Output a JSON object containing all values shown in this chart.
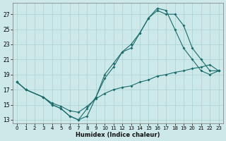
{
  "xlabel": "Humidex (Indice chaleur)",
  "xlim": [
    -0.5,
    23.5
  ],
  "ylim": [
    12.5,
    28.5
  ],
  "yticks": [
    13,
    15,
    17,
    19,
    21,
    23,
    25,
    27
  ],
  "xticks": [
    0,
    1,
    2,
    3,
    4,
    5,
    6,
    7,
    8,
    9,
    10,
    11,
    12,
    13,
    14,
    15,
    16,
    17,
    18,
    19,
    20,
    21,
    22,
    23
  ],
  "bg_color": "#cce8e8",
  "grid_color": "#aad0d0",
  "line_color": "#1a6b6b",
  "line1_x": [
    0,
    1,
    3,
    4,
    5,
    6,
    7,
    8,
    9,
    10,
    11,
    12,
    13,
    14,
    15,
    16,
    17,
    18,
    19,
    20,
    21,
    22,
    23
  ],
  "line1_y": [
    18.0,
    17.0,
    16.0,
    15.0,
    14.5,
    13.5,
    13.0,
    13.5,
    16.0,
    18.5,
    20.0,
    22.0,
    22.5,
    24.5,
    26.5,
    27.8,
    27.5,
    25.0,
    22.5,
    21.0,
    19.5,
    19.0,
    19.5
  ],
  "line2_x": [
    0,
    1,
    3,
    4,
    5,
    6,
    7,
    8,
    9,
    10,
    11,
    12,
    13,
    14,
    15,
    16,
    17,
    18,
    19,
    20,
    21,
    22,
    23
  ],
  "line2_y": [
    18.0,
    17.0,
    16.0,
    15.0,
    14.5,
    13.5,
    13.0,
    14.5,
    16.0,
    19.0,
    20.5,
    22.0,
    23.0,
    24.5,
    26.5,
    27.5,
    27.0,
    27.0,
    25.5,
    22.5,
    21.0,
    19.5,
    19.5
  ],
  "line3_x": [
    0,
    1,
    3,
    4,
    5,
    6,
    7,
    8,
    9,
    10,
    11,
    12,
    13,
    14,
    15,
    16,
    17,
    18,
    19,
    20,
    21,
    22,
    23
  ],
  "line3_y": [
    18.0,
    17.0,
    16.0,
    15.2,
    14.8,
    14.2,
    14.0,
    14.8,
    15.8,
    16.5,
    17.0,
    17.3,
    17.5,
    18.0,
    18.3,
    18.8,
    19.0,
    19.3,
    19.5,
    19.8,
    20.0,
    20.3,
    19.5
  ]
}
